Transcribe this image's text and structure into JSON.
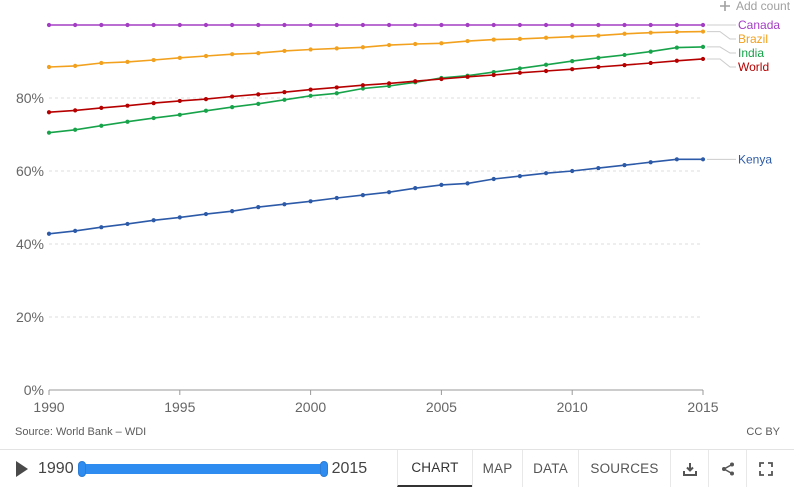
{
  "chart_data": {
    "type": "line",
    "x": [
      1990,
      1991,
      1992,
      1993,
      1994,
      1995,
      1996,
      1997,
      1998,
      1999,
      2000,
      2001,
      2002,
      2003,
      2004,
      2005,
      2006,
      2007,
      2008,
      2009,
      2010,
      2011,
      2012,
      2013,
      2014,
      2015
    ],
    "series": [
      {
        "name": "Canada",
        "color": "#a33ec4",
        "values": [
          100,
          100,
          100,
          100,
          100,
          100,
          100,
          100,
          100,
          100,
          100,
          100,
          100,
          100,
          100,
          100,
          100,
          100,
          100,
          100,
          100,
          100,
          100,
          100,
          100,
          100
        ]
      },
      {
        "name": "Brazil",
        "color": "#f2a11e",
        "values": [
          88.5,
          88.8,
          89.6,
          89.9,
          90.4,
          91.0,
          91.5,
          92.0,
          92.3,
          92.9,
          93.3,
          93.6,
          93.9,
          94.5,
          94.8,
          95.0,
          95.6,
          96.0,
          96.2,
          96.5,
          96.8,
          97.1,
          97.6,
          97.9,
          98.1,
          98.2
        ]
      },
      {
        "name": "India",
        "color": "#17a34a",
        "values": [
          70.5,
          71.3,
          72.4,
          73.5,
          74.5,
          75.4,
          76.5,
          77.5,
          78.4,
          79.5,
          80.6,
          81.3,
          82.6,
          83.3,
          84.3,
          85.5,
          86.1,
          87.1,
          88.1,
          89.1,
          90.1,
          91.0,
          91.8,
          92.7,
          93.8,
          94.0
        ]
      },
      {
        "name": "World",
        "color": "#b60000",
        "values": [
          76.1,
          76.6,
          77.3,
          77.9,
          78.6,
          79.2,
          79.7,
          80.4,
          81.0,
          81.6,
          82.3,
          82.9,
          83.5,
          84.0,
          84.6,
          85.2,
          85.8,
          86.3,
          86.9,
          87.4,
          87.9,
          88.5,
          89.0,
          89.6,
          90.2,
          90.7
        ]
      },
      {
        "name": "Kenya",
        "color": "#2c5aa8",
        "values": [
          42.8,
          43.6,
          44.6,
          45.5,
          46.5,
          47.3,
          48.2,
          49.0,
          50.1,
          50.9,
          51.7,
          52.6,
          53.4,
          54.2,
          55.3,
          56.2,
          56.6,
          57.8,
          58.6,
          59.4,
          60.0,
          60.8,
          61.6,
          62.4,
          63.2,
          63.2
        ]
      }
    ],
    "xlim": [
      1990,
      2015
    ],
    "ylim": [
      0,
      100
    ],
    "y_ticks": [
      0,
      20,
      40,
      60,
      80
    ],
    "y_tick_labels": [
      "0%",
      "20%",
      "40%",
      "60%",
      "80%"
    ],
    "x_ticks": [
      1990,
      1995,
      2000,
      2005,
      2010,
      2015
    ],
    "x_tick_labels": [
      "1990",
      "1995",
      "2000",
      "2005",
      "2010",
      "2015"
    ],
    "legend_placement": "right, labels at line ends",
    "grid": "horizontal dashed",
    "add_country_label": "Add count"
  },
  "footer": {
    "source": "Source: World Bank – WDI",
    "license": "CC BY"
  },
  "controls": {
    "start_year": "1990",
    "end_year": "2015",
    "tabs": {
      "chart": "CHART",
      "map": "MAP",
      "data": "DATA",
      "sources": "SOURCES"
    },
    "icons": {
      "download": "download-icon",
      "share": "share-icon",
      "fullscreen": "fullscreen-icon"
    },
    "accent_color": "#2e8cf0"
  }
}
